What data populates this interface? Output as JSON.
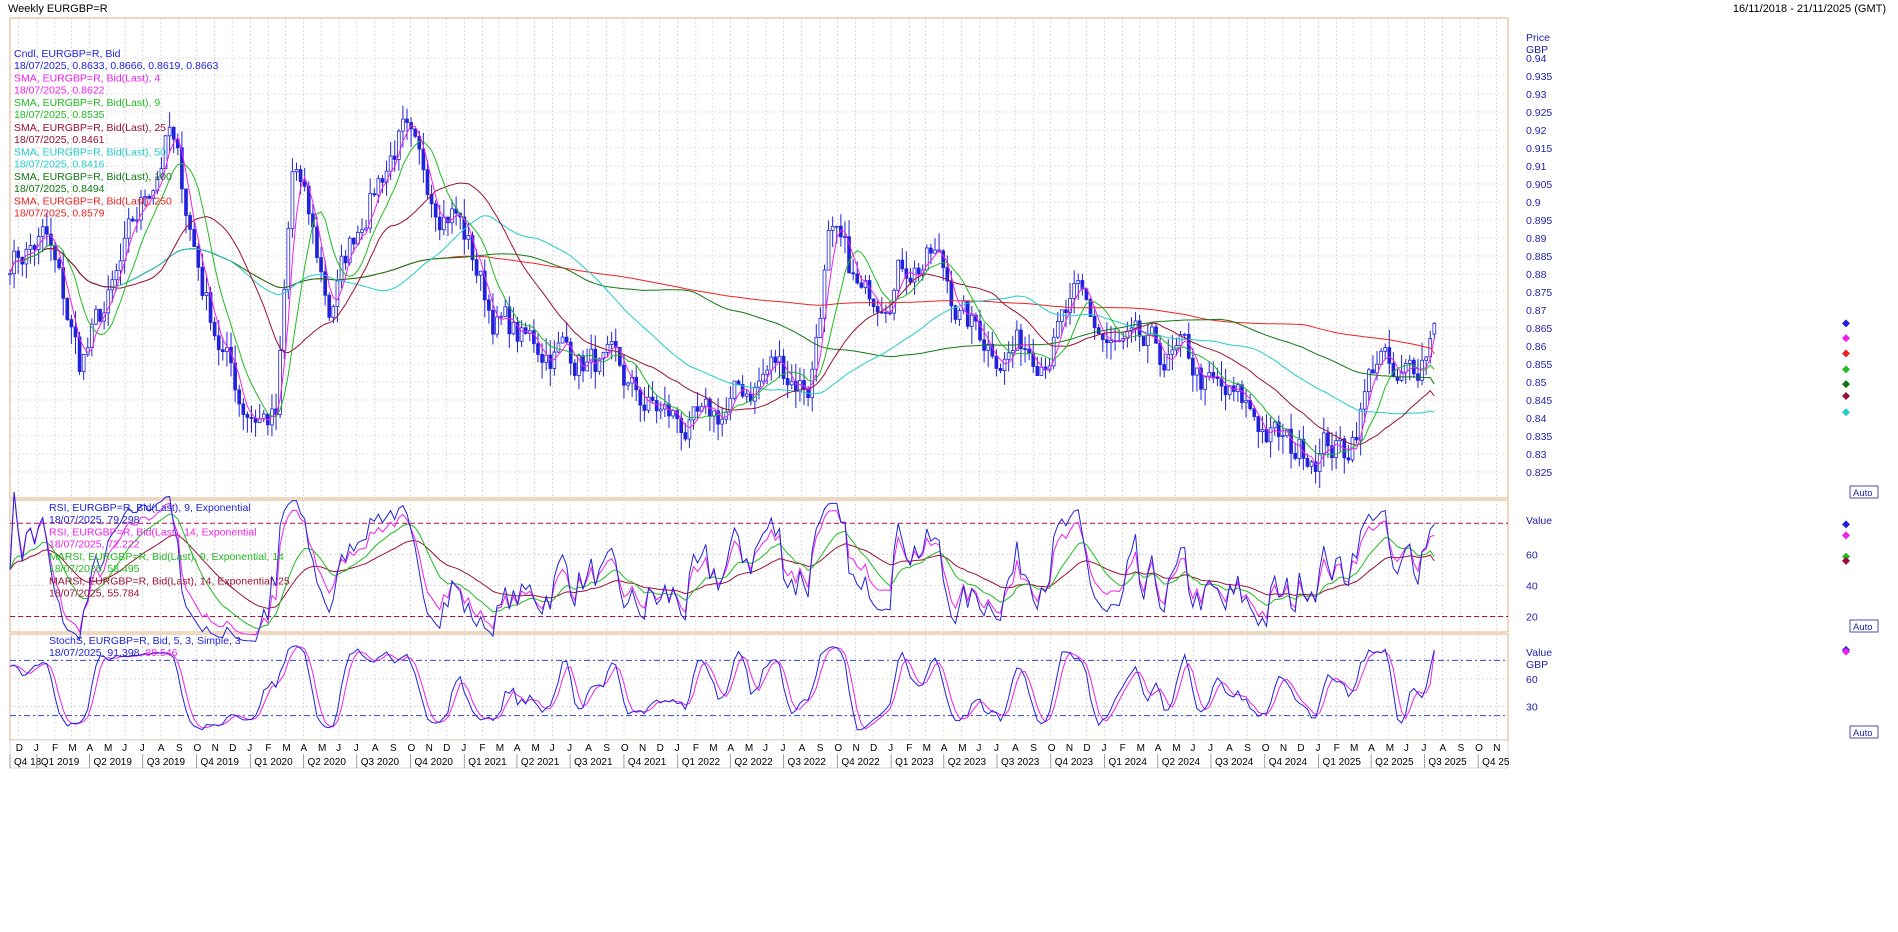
{
  "header": {
    "title": "Weekly EURGBP=R",
    "range": "16/11/2018 - 21/11/2025 (GMT)"
  },
  "colors": {
    "candle": "#2222dd",
    "sma4": "#ee22ee",
    "sma9": "#22bb22",
    "sma25": "#991133",
    "sma50": "#22cccc",
    "sma100": "#117711",
    "sma250": "#ee2222",
    "rsi9": "#2222dd",
    "rsi14": "#ee22ee",
    "marsi9": "#22bb22",
    "marsi14": "#991133",
    "stoch_k": "#2222dd",
    "stoch_d": "#ee22ee",
    "grid": "#c8c8c8",
    "border": "#e0b080"
  },
  "legends": {
    "price": [
      {
        "label": "Cndl, EURGBP=R, Bid",
        "value": "18/07/2025, 0.8633, 0.8666, 0.8619, 0.8663",
        "color": "candle"
      },
      {
        "label": "SMA, EURGBP=R, Bid(Last),  4",
        "value": "18/07/2025, 0.8622",
        "color": "sma4"
      },
      {
        "label": "SMA, EURGBP=R, Bid(Last),  9",
        "value": "18/07/2025, 0.8535",
        "color": "sma9"
      },
      {
        "label": "SMA, EURGBP=R, Bid(Last),  25",
        "value": "18/07/2025, 0.8461",
        "color": "sma25"
      },
      {
        "label": "SMA, EURGBP=R, Bid(Last),  50",
        "value": "18/07/2025, 0.8416",
        "color": "sma50"
      },
      {
        "label": "SMA, EURGBP=R, Bid(Last),  100",
        "value": "18/07/2025, 0.8494",
        "color": "sma100"
      },
      {
        "label": "SMA, EURGBP=R, Bid(Last),  250",
        "value": "18/07/2025, 0.8579",
        "color": "sma250"
      }
    ],
    "rsi": [
      {
        "label": "RSI, EURGBP=R, Bid(Last),  9, Exponential",
        "value": "18/07/2025, 79.298",
        "color": "rsi9"
      },
      {
        "label": "RSI, EURGBP=R, Bid(Last),  14, Exponential",
        "value": "18/07/2025, 72.222",
        "color": "rsi14"
      },
      {
        "label": "MARSI, EURGBP=R, Bid(Last),  9, Exponential, 14",
        "value": "18/07/2025, 58.495",
        "color": "marsi9"
      },
      {
        "label": "MARSI, EURGBP=R, Bid(Last),  14, Exponential, 25",
        "value": "18/07/2025, 55.784",
        "color": "marsi14"
      }
    ],
    "stoch": {
      "label": "StochS, EURGBP=R, Bid,  5, 3, Simple, 3",
      "date": "18/07/2025, ",
      "k": "91.398",
      "d": "89.546"
    }
  },
  "axis_labels": {
    "price_header": [
      "Price",
      "GBP"
    ],
    "value_header": "Value",
    "value_header2": [
      "Value",
      "GBP"
    ],
    "auto": "Auto"
  },
  "chart_data": [
    {
      "type": "candlestick",
      "title": "Weekly EURGBP=R",
      "ylim": [
        0.82,
        0.945
      ],
      "yticks": [
        0.825,
        0.83,
        0.835,
        0.84,
        0.845,
        0.85,
        0.855,
        0.86,
        0.865,
        0.87,
        0.875,
        0.88,
        0.885,
        0.89,
        0.895,
        0.9,
        0.905,
        0.91,
        0.915,
        0.92,
        0.925,
        0.93,
        0.935,
        0.94
      ],
      "x_months": [
        "D",
        "J",
        "F",
        "M",
        "A",
        "M",
        "J",
        "J",
        "A",
        "S",
        "O",
        "N",
        "D",
        "J",
        "F",
        "M",
        "A",
        "M",
        "J",
        "J",
        "A",
        "S",
        "O",
        "N",
        "D",
        "J",
        "F",
        "M",
        "A",
        "M",
        "J",
        "J",
        "A",
        "S",
        "O",
        "N",
        "D",
        "J",
        "F",
        "M",
        "A",
        "M",
        "J",
        "J",
        "A",
        "S",
        "O",
        "N",
        "D",
        "J",
        "F",
        "M",
        "A",
        "M",
        "J",
        "J",
        "A",
        "S",
        "O",
        "N",
        "D",
        "J",
        "F",
        "M",
        "A",
        "M",
        "J",
        "J",
        "A",
        "S",
        "O",
        "N",
        "D",
        "J",
        "F",
        "M",
        "A",
        "M",
        "J",
        "J",
        "A",
        "S",
        "O",
        "N"
      ],
      "x_quarters": [
        "Q4 18",
        "Q1 2019",
        "Q2 2019",
        "Q3 2019",
        "Q4 2019",
        "Q1 2020",
        "Q2 2020",
        "Q3 2020",
        "Q4 2020",
        "Q1 2021",
        "Q2 2021",
        "Q3 2021",
        "Q4 2021",
        "Q1 2022",
        "Q2 2022",
        "Q3 2022",
        "Q4 2022",
        "Q1 2023",
        "Q2 2023",
        "Q3 2023",
        "Q4 2023",
        "Q1 2024",
        "Q2 2024",
        "Q3 2024",
        "Q4 2024",
        "Q1 2025",
        "Q2 2025",
        "Q3 2025",
        "Q4 25"
      ],
      "close_path": [
        [
          "2018-11",
          0.885
        ],
        [
          "2019-01",
          0.89
        ],
        [
          "2019-03",
          0.855
        ],
        [
          "2019-05",
          0.875
        ],
        [
          "2019-08",
          0.92
        ],
        [
          "2019-10",
          0.875
        ],
        [
          "2019-12",
          0.845
        ],
        [
          "2020-02",
          0.84
        ],
        [
          "2020-03",
          0.91
        ],
        [
          "2020-05",
          0.87
        ],
        [
          "2020-07",
          0.9
        ],
        [
          "2020-09",
          0.92
        ],
        [
          "2020-10",
          0.905
        ],
        [
          "2020-12",
          0.9
        ],
        [
          "2021-02",
          0.87
        ],
        [
          "2021-04",
          0.86
        ],
        [
          "2021-06",
          0.86
        ],
        [
          "2021-08",
          0.855
        ],
        [
          "2021-10",
          0.845
        ],
        [
          "2021-12",
          0.84
        ],
        [
          "2022-02",
          0.835
        ],
        [
          "2022-04",
          0.845
        ],
        [
          "2022-06",
          0.855
        ],
        [
          "2022-08",
          0.85
        ],
        [
          "2022-09",
          0.89
        ],
        [
          "2022-11",
          0.87
        ],
        [
          "2023-01",
          0.885
        ],
        [
          "2023-03",
          0.885
        ],
        [
          "2023-05",
          0.865
        ],
        [
          "2023-07",
          0.86
        ],
        [
          "2023-09",
          0.862
        ],
        [
          "2023-11",
          0.87
        ],
        [
          "2024-01",
          0.858
        ],
        [
          "2024-03",
          0.855
        ],
        [
          "2024-05",
          0.855
        ],
        [
          "2024-07",
          0.845
        ],
        [
          "2024-09",
          0.84
        ],
        [
          "2024-11",
          0.83
        ],
        [
          "2025-01",
          0.835
        ],
        [
          "2025-02",
          0.83
        ],
        [
          "2025-04",
          0.86
        ],
        [
          "2025-05",
          0.845
        ],
        [
          "2025-06",
          0.853
        ],
        [
          "2025-07",
          0.866
        ]
      ],
      "last": {
        "date": "18/07/2025",
        "open": 0.8633,
        "high": 0.8666,
        "low": 0.8619,
        "close": 0.8663
      },
      "sma_last": {
        "4": 0.8622,
        "9": 0.8535,
        "25": 0.8461,
        "50": 0.8416,
        "100": 0.8494,
        "250": 0.8579
      }
    },
    {
      "type": "line",
      "title": "RSI",
      "ylim": [
        10,
        95
      ],
      "yticks": [
        20,
        40,
        60
      ],
      "levels": [
        80,
        20
      ],
      "last": {
        "rsi9": 79.298,
        "rsi14": 72.222,
        "marsi9": 58.495,
        "marsi14": 55.784
      }
    },
    {
      "type": "line",
      "title": "StochS",
      "ylim": [
        0,
        100
      ],
      "yticks": [
        30,
        60
      ],
      "levels": [
        80,
        20
      ],
      "last": {
        "k": 91.398,
        "d": 89.546
      }
    }
  ]
}
